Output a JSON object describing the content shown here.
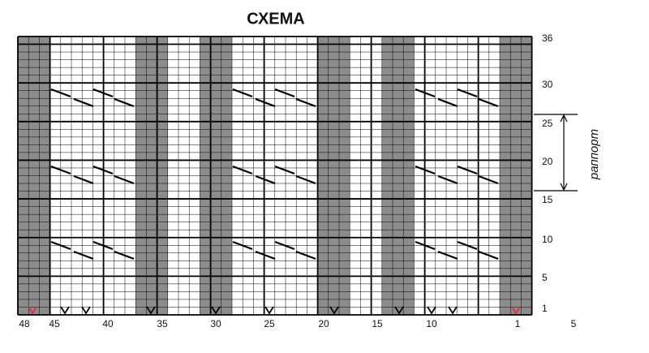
{
  "title": "СХЕМА",
  "column_labels": [
    "48",
    "45",
    "40",
    "35",
    "30",
    "25",
    "20",
    "15",
    "10",
    "1",
    "5"
  ],
  "row_labels": [
    "36",
    "30",
    "25",
    "20",
    "15",
    "10",
    "5",
    "1"
  ],
  "rapport_label": "раппорт"
}
